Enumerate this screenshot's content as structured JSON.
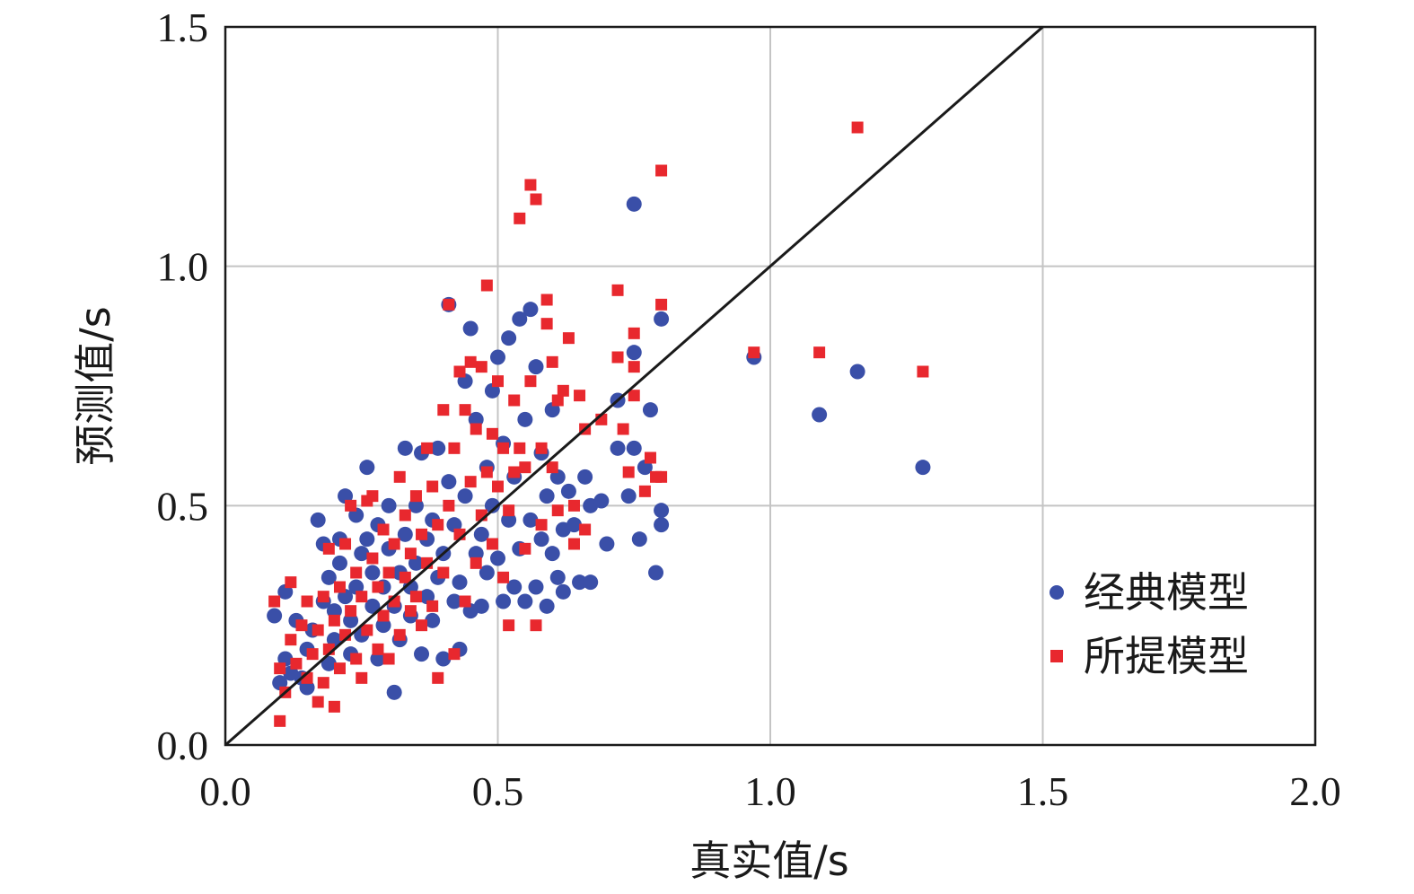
{
  "chart_data": {
    "type": "scatter",
    "xlabel": "真实值/s",
    "ylabel": "预测值/s",
    "xlim": [
      0,
      2.0
    ],
    "ylim": [
      0,
      1.5
    ],
    "xticks": [
      "0.0",
      "0.5",
      "1.0",
      "1.5",
      "2.0"
    ],
    "yticks": [
      "0.0",
      "0.5",
      "1.0",
      "1.5"
    ],
    "grid": true,
    "reference_line": "y = x",
    "legend_position": "bottom-right",
    "series": [
      {
        "name": "经典模型",
        "marker": "circle",
        "color": "#3a4fa8",
        "points": [
          [
            0.09,
            0.27
          ],
          [
            0.1,
            0.13
          ],
          [
            0.11,
            0.18
          ],
          [
            0.11,
            0.32
          ],
          [
            0.12,
            0.15
          ],
          [
            0.13,
            0.26
          ],
          [
            0.14,
            0.14
          ],
          [
            0.15,
            0.2
          ],
          [
            0.15,
            0.12
          ],
          [
            0.16,
            0.24
          ],
          [
            0.17,
            0.47
          ],
          [
            0.18,
            0.3
          ],
          [
            0.18,
            0.42
          ],
          [
            0.19,
            0.17
          ],
          [
            0.19,
            0.35
          ],
          [
            0.2,
            0.28
          ],
          [
            0.2,
            0.22
          ],
          [
            0.21,
            0.38
          ],
          [
            0.21,
            0.43
          ],
          [
            0.22,
            0.52
          ],
          [
            0.22,
            0.31
          ],
          [
            0.23,
            0.19
          ],
          [
            0.23,
            0.26
          ],
          [
            0.24,
            0.48
          ],
          [
            0.24,
            0.33
          ],
          [
            0.25,
            0.4
          ],
          [
            0.25,
            0.23
          ],
          [
            0.26,
            0.58
          ],
          [
            0.26,
            0.43
          ],
          [
            0.27,
            0.29
          ],
          [
            0.27,
            0.36
          ],
          [
            0.28,
            0.46
          ],
          [
            0.28,
            0.18
          ],
          [
            0.29,
            0.33
          ],
          [
            0.29,
            0.25
          ],
          [
            0.3,
            0.41
          ],
          [
            0.3,
            0.5
          ],
          [
            0.31,
            0.11
          ],
          [
            0.31,
            0.29
          ],
          [
            0.32,
            0.36
          ],
          [
            0.32,
            0.22
          ],
          [
            0.33,
            0.62
          ],
          [
            0.33,
            0.44
          ],
          [
            0.34,
            0.33
          ],
          [
            0.34,
            0.27
          ],
          [
            0.35,
            0.5
          ],
          [
            0.35,
            0.38
          ],
          [
            0.36,
            0.19
          ],
          [
            0.36,
            0.61
          ],
          [
            0.37,
            0.43
          ],
          [
            0.37,
            0.31
          ],
          [
            0.38,
            0.26
          ],
          [
            0.38,
            0.47
          ],
          [
            0.39,
            0.35
          ],
          [
            0.39,
            0.62
          ],
          [
            0.4,
            0.18
          ],
          [
            0.4,
            0.4
          ],
          [
            0.41,
            0.92
          ],
          [
            0.41,
            0.55
          ],
          [
            0.42,
            0.3
          ],
          [
            0.42,
            0.46
          ],
          [
            0.43,
            0.2
          ],
          [
            0.43,
            0.34
          ],
          [
            0.44,
            0.76
          ],
          [
            0.44,
            0.52
          ],
          [
            0.45,
            0.87
          ],
          [
            0.45,
            0.28
          ],
          [
            0.46,
            0.4
          ],
          [
            0.46,
            0.68
          ],
          [
            0.47,
            0.29
          ],
          [
            0.47,
            0.44
          ],
          [
            0.48,
            0.58
          ],
          [
            0.48,
            0.36
          ],
          [
            0.49,
            0.74
          ],
          [
            0.49,
            0.5
          ],
          [
            0.5,
            0.81
          ],
          [
            0.5,
            0.39
          ],
          [
            0.51,
            0.63
          ],
          [
            0.51,
            0.3
          ],
          [
            0.52,
            0.85
          ],
          [
            0.52,
            0.47
          ],
          [
            0.53,
            0.33
          ],
          [
            0.53,
            0.56
          ],
          [
            0.54,
            0.89
          ],
          [
            0.54,
            0.41
          ],
          [
            0.55,
            0.3
          ],
          [
            0.55,
            0.68
          ],
          [
            0.56,
            0.91
          ],
          [
            0.56,
            0.47
          ],
          [
            0.57,
            0.79
          ],
          [
            0.57,
            0.33
          ],
          [
            0.58,
            0.61
          ],
          [
            0.58,
            0.43
          ],
          [
            0.59,
            0.52
          ],
          [
            0.59,
            0.29
          ],
          [
            0.6,
            0.7
          ],
          [
            0.6,
            0.4
          ],
          [
            0.61,
            0.35
          ],
          [
            0.61,
            0.56
          ],
          [
            0.62,
            0.45
          ],
          [
            0.62,
            0.32
          ],
          [
            0.63,
            0.53
          ],
          [
            0.64,
            0.46
          ],
          [
            0.65,
            0.34
          ],
          [
            0.66,
            0.56
          ],
          [
            0.67,
            0.5
          ],
          [
            0.67,
            0.34
          ],
          [
            0.69,
            0.51
          ],
          [
            0.7,
            0.42
          ],
          [
            0.72,
            0.62
          ],
          [
            0.72,
            0.72
          ],
          [
            0.74,
            0.52
          ],
          [
            0.75,
            1.13
          ],
          [
            0.75,
            0.82
          ],
          [
            0.75,
            0.62
          ],
          [
            0.76,
            0.43
          ],
          [
            0.77,
            0.58
          ],
          [
            0.78,
            0.7
          ],
          [
            0.79,
            0.36
          ],
          [
            0.8,
            0.46
          ],
          [
            0.8,
            0.49
          ],
          [
            0.8,
            0.89
          ],
          [
            0.97,
            0.81
          ],
          [
            1.09,
            0.69
          ],
          [
            1.16,
            0.78
          ],
          [
            1.28,
            0.58
          ]
        ]
      },
      {
        "name": "所提模型",
        "marker": "square",
        "color": "#e8282e",
        "points": [
          [
            0.09,
            0.3
          ],
          [
            0.1,
            0.16
          ],
          [
            0.1,
            0.05
          ],
          [
            0.11,
            0.11
          ],
          [
            0.12,
            0.34
          ],
          [
            0.12,
            0.22
          ],
          [
            0.13,
            0.17
          ],
          [
            0.14,
            0.25
          ],
          [
            0.15,
            0.14
          ],
          [
            0.15,
            0.3
          ],
          [
            0.16,
            0.19
          ],
          [
            0.17,
            0.09
          ],
          [
            0.17,
            0.24
          ],
          [
            0.18,
            0.31
          ],
          [
            0.18,
            0.13
          ],
          [
            0.19,
            0.2
          ],
          [
            0.19,
            0.41
          ],
          [
            0.2,
            0.26
          ],
          [
            0.2,
            0.08
          ],
          [
            0.21,
            0.33
          ],
          [
            0.21,
            0.16
          ],
          [
            0.22,
            0.23
          ],
          [
            0.22,
            0.42
          ],
          [
            0.23,
            0.5
          ],
          [
            0.23,
            0.28
          ],
          [
            0.24,
            0.18
          ],
          [
            0.24,
            0.36
          ],
          [
            0.25,
            0.31
          ],
          [
            0.25,
            0.14
          ],
          [
            0.26,
            0.51
          ],
          [
            0.26,
            0.24
          ],
          [
            0.27,
            0.39
          ],
          [
            0.27,
            0.52
          ],
          [
            0.28,
            0.2
          ],
          [
            0.28,
            0.33
          ],
          [
            0.29,
            0.45
          ],
          [
            0.29,
            0.27
          ],
          [
            0.3,
            0.36
          ],
          [
            0.3,
            0.18
          ],
          [
            0.31,
            0.42
          ],
          [
            0.31,
            0.3
          ],
          [
            0.32,
            0.56
          ],
          [
            0.32,
            0.23
          ],
          [
            0.33,
            0.48
          ],
          [
            0.33,
            0.35
          ],
          [
            0.34,
            0.4
          ],
          [
            0.34,
            0.28
          ],
          [
            0.35,
            0.52
          ],
          [
            0.35,
            0.31
          ],
          [
            0.36,
            0.44
          ],
          [
            0.36,
            0.25
          ],
          [
            0.37,
            0.62
          ],
          [
            0.37,
            0.38
          ],
          [
            0.38,
            0.54
          ],
          [
            0.38,
            0.29
          ],
          [
            0.39,
            0.46
          ],
          [
            0.39,
            0.14
          ],
          [
            0.4,
            0.7
          ],
          [
            0.4,
            0.36
          ],
          [
            0.41,
            0.92
          ],
          [
            0.41,
            0.5
          ],
          [
            0.42,
            0.62
          ],
          [
            0.42,
            0.19
          ],
          [
            0.43,
            0.78
          ],
          [
            0.43,
            0.44
          ],
          [
            0.44,
            0.7
          ],
          [
            0.44,
            0.3
          ],
          [
            0.45,
            0.8
          ],
          [
            0.45,
            0.55
          ],
          [
            0.46,
            0.38
          ],
          [
            0.46,
            0.66
          ],
          [
            0.47,
            0.48
          ],
          [
            0.47,
            0.79
          ],
          [
            0.48,
            0.96
          ],
          [
            0.48,
            0.57
          ],
          [
            0.49,
            0.42
          ],
          [
            0.49,
            0.65
          ],
          [
            0.5,
            0.54
          ],
          [
            0.5,
            0.76
          ],
          [
            0.51,
            0.35
          ],
          [
            0.51,
            0.62
          ],
          [
            0.52,
            0.25
          ],
          [
            0.52,
            0.49
          ],
          [
            0.53,
            0.57
          ],
          [
            0.53,
            0.72
          ],
          [
            0.54,
            1.1
          ],
          [
            0.54,
            0.62
          ],
          [
            0.55,
            0.41
          ],
          [
            0.55,
            0.58
          ],
          [
            0.56,
            1.17
          ],
          [
            0.56,
            0.76
          ],
          [
            0.57,
            1.14
          ],
          [
            0.57,
            0.25
          ],
          [
            0.58,
            0.62
          ],
          [
            0.58,
            0.46
          ],
          [
            0.59,
            0.93
          ],
          [
            0.59,
            0.88
          ],
          [
            0.6,
            0.8
          ],
          [
            0.6,
            0.58
          ],
          [
            0.61,
            0.72
          ],
          [
            0.61,
            0.49
          ],
          [
            0.62,
            0.74
          ],
          [
            0.63,
            0.85
          ],
          [
            0.64,
            0.5
          ],
          [
            0.64,
            0.42
          ],
          [
            0.65,
            0.73
          ],
          [
            0.66,
            0.66
          ],
          [
            0.66,
            0.45
          ],
          [
            0.69,
            0.68
          ],
          [
            0.72,
            0.95
          ],
          [
            0.72,
            0.81
          ],
          [
            0.73,
            0.66
          ],
          [
            0.74,
            0.57
          ],
          [
            0.75,
            0.86
          ],
          [
            0.75,
            0.73
          ],
          [
            0.75,
            0.79
          ],
          [
            0.77,
            0.53
          ],
          [
            0.78,
            0.6
          ],
          [
            0.79,
            0.56
          ],
          [
            0.8,
            0.92
          ],
          [
            0.8,
            1.2
          ],
          [
            0.8,
            0.56
          ],
          [
            0.97,
            0.82
          ],
          [
            1.09,
            0.82
          ],
          [
            1.16,
            1.29
          ],
          [
            1.28,
            0.78
          ]
        ]
      }
    ]
  }
}
